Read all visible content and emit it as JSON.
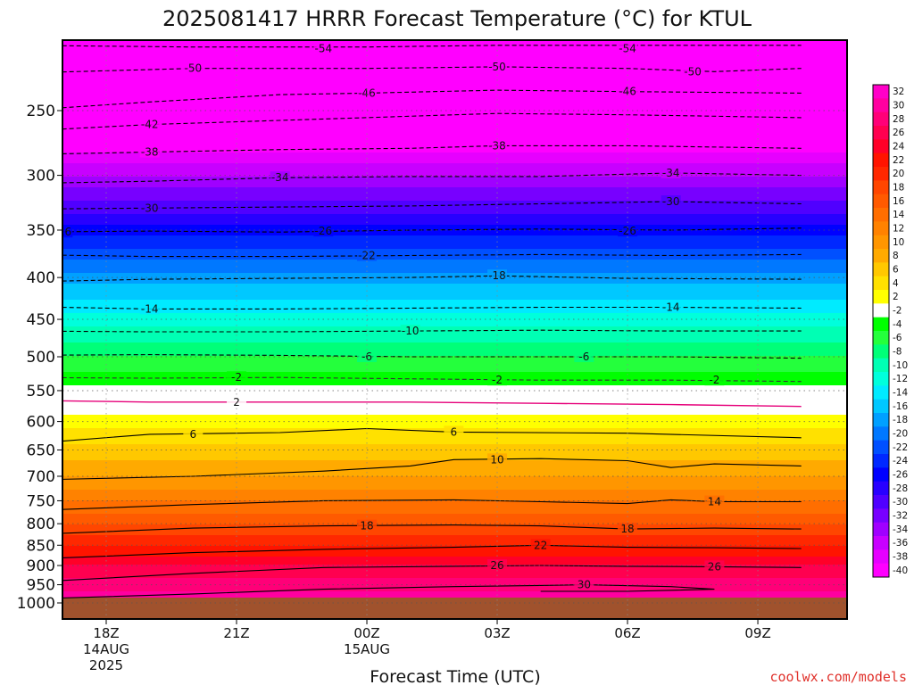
{
  "title": "2025081417 HRRR Forecast Temperature (°C) for KTUL",
  "credit": "coolwx.com/models",
  "credit_color": "#e0302a",
  "chart_data": {
    "type": "heatmap",
    "title": "2025081417 HRRR Forecast Temperature (°C) for KTUL",
    "xlabel": "Forecast Time (UTC)",
    "ylabel": "",
    "x_range_hours": [
      -1,
      17
    ],
    "y_range_hPa": [
      1000,
      200
    ],
    "y_scale": "log",
    "y_ticks": [
      {
        "p": 250,
        "label": "250"
      },
      {
        "p": 300,
        "label": "300"
      },
      {
        "p": 350,
        "label": "350"
      },
      {
        "p": 400,
        "label": "400"
      },
      {
        "p": 450,
        "label": "450"
      },
      {
        "p": 500,
        "label": "500"
      },
      {
        "p": 550,
        "label": "550"
      },
      {
        "p": 600,
        "label": "600"
      },
      {
        "p": 650,
        "label": "650"
      },
      {
        "p": 700,
        "label": "700"
      },
      {
        "p": 750,
        "label": "750"
      },
      {
        "p": 800,
        "label": "800"
      },
      {
        "p": 850,
        "label": "850"
      },
      {
        "p": 900,
        "label": "900"
      },
      {
        "p": 950,
        "label": "950"
      },
      {
        "p": 1000,
        "label": "1000"
      }
    ],
    "x_ticks": [
      {
        "h": 1,
        "lines": [
          "18Z",
          "14AUG",
          "2025"
        ]
      },
      {
        "h": 4,
        "lines": [
          "21Z"
        ]
      },
      {
        "h": 7,
        "lines": [
          "00Z",
          "15AUG"
        ]
      },
      {
        "h": 10,
        "lines": [
          "03Z"
        ]
      },
      {
        "h": 13,
        "lines": [
          "06Z"
        ]
      },
      {
        "h": 16,
        "lines": [
          "09Z"
        ]
      }
    ],
    "grid": true,
    "surface_pressure_hPa": 985,
    "surface_color": "#a0522d",
    "colorbar": {
      "placement": "right",
      "labels": [
        32,
        30,
        28,
        26,
        24,
        22,
        20,
        18,
        16,
        14,
        12,
        10,
        8,
        6,
        4,
        2,
        -2,
        -4,
        -6,
        -8,
        -10,
        -12,
        -14,
        -16,
        -18,
        -20,
        -22,
        -24,
        -26,
        -28,
        -30,
        -32,
        -34,
        -36,
        -38,
        -40
      ],
      "colors": [
        [
          "#ff00c8",
          "#ff00a0",
          "#ff0078",
          "#ff0050",
          "#ff0028",
          "#ff1400",
          "#ff2800",
          "#ff4600",
          "#ff5a00",
          "#ff6e00",
          "#ff8200",
          "#ff9600",
          "#ffaa00",
          "#ffc800",
          "#ffe100",
          "#ffff00",
          "#ffffff",
          "#00ff00",
          "#24ff3c",
          "#00ff78",
          "#00ffb4",
          "#00ffdc",
          "#00ebff",
          "#00c8ff",
          "#00a0ff",
          "#0078ff",
          "#0050ff",
          "#0028ff",
          "#0000ff",
          "#2800ff",
          "#5000ff",
          "#7800ff",
          "#a000ff",
          "#c800ff",
          "#e600ff",
          "#ff00ff"
        ]
      ]
    },
    "temperature_profile": [
      {
        "p": 200,
        "t": -56
      },
      {
        "p": 250,
        "t": -45
      },
      {
        "p": 300,
        "t": -34
      },
      {
        "p": 350,
        "t": -25
      },
      {
        "p": 400,
        "t": -17
      },
      {
        "p": 450,
        "t": -11
      },
      {
        "p": 500,
        "t": -6
      },
      {
        "p": 550,
        "t": -1
      },
      {
        "p": 600,
        "t": 3
      },
      {
        "p": 650,
        "t": 7
      },
      {
        "p": 700,
        "t": 10
      },
      {
        "p": 750,
        "t": 14
      },
      {
        "p": 800,
        "t": 18
      },
      {
        "p": 850,
        "t": 22
      },
      {
        "p": 900,
        "t": 26
      },
      {
        "p": 950,
        "t": 29
      },
      {
        "p": 1000,
        "t": 32
      }
    ],
    "contours": [
      {
        "level": -54,
        "labels": [
          {
            "h": 6,
            "p": 210
          },
          {
            "h": 13,
            "p": 210
          }
        ],
        "points": [
          [
            -1,
            208
          ],
          [
            3,
            209
          ],
          [
            7,
            209
          ],
          [
            10,
            208
          ],
          [
            13,
            208
          ],
          [
            17,
            208
          ]
        ]
      },
      {
        "level": -50,
        "labels": [
          {
            "h": 3,
            "p": 222
          },
          {
            "h": 10,
            "p": 221
          },
          {
            "h": 14.5,
            "p": 224
          }
        ],
        "points": [
          [
            -1,
            225
          ],
          [
            3,
            222
          ],
          [
            7,
            222
          ],
          [
            10,
            221
          ],
          [
            13,
            222
          ],
          [
            15,
            224
          ],
          [
            17,
            222
          ]
        ]
      },
      {
        "level": -46,
        "labels": [
          {
            "h": 7,
            "p": 238
          },
          {
            "h": 13,
            "p": 237
          }
        ],
        "points": [
          [
            -1,
            250
          ],
          [
            2,
            244
          ],
          [
            5,
            239
          ],
          [
            7,
            238
          ],
          [
            10,
            236
          ],
          [
            13,
            237
          ],
          [
            17,
            238
          ]
        ]
      },
      {
        "level": -42,
        "labels": [
          {
            "h": 2,
            "p": 260
          }
        ],
        "points": [
          [
            -1,
            265
          ],
          [
            2,
            260
          ],
          [
            5,
            257
          ],
          [
            8,
            254
          ],
          [
            10,
            252
          ],
          [
            13,
            253
          ],
          [
            17,
            255
          ]
        ]
      },
      {
        "level": -38,
        "labels": [
          {
            "h": 2,
            "p": 281
          },
          {
            "h": 10,
            "p": 276
          }
        ],
        "points": [
          [
            -1,
            283
          ],
          [
            2,
            281
          ],
          [
            5,
            279
          ],
          [
            8,
            278
          ],
          [
            10,
            276
          ],
          [
            13,
            276
          ],
          [
            17,
            278
          ]
        ]
      },
      {
        "level": -34,
        "labels": [
          {
            "h": 5,
            "p": 302
          },
          {
            "h": 14,
            "p": 298
          }
        ],
        "points": [
          [
            -1,
            307
          ],
          [
            2,
            305
          ],
          [
            5,
            302
          ],
          [
            8,
            301
          ],
          [
            11,
            301
          ],
          [
            14,
            298
          ],
          [
            17,
            300
          ]
        ]
      },
      {
        "level": -30,
        "labels": [
          {
            "h": 2,
            "p": 329
          },
          {
            "h": 14,
            "p": 323
          }
        ],
        "points": [
          [
            -1,
            330
          ],
          [
            2,
            329
          ],
          [
            5,
            328
          ],
          [
            8,
            327
          ],
          [
            11,
            325
          ],
          [
            14,
            323
          ],
          [
            17,
            325
          ]
        ]
      },
      {
        "level": -26,
        "labels": [
          {
            "h": 0,
            "p": 352
          },
          {
            "h": 6,
            "p": 351
          },
          {
            "h": 13,
            "p": 351
          }
        ],
        "points": [
          [
            -1,
            352
          ],
          [
            2,
            351
          ],
          [
            5,
            352
          ],
          [
            8,
            350
          ],
          [
            11,
            349
          ],
          [
            14,
            350
          ],
          [
            17,
            348
          ]
        ]
      },
      {
        "level": -22,
        "labels": [
          {
            "h": 7,
            "p": 376
          }
        ],
        "points": [
          [
            -1,
            375
          ],
          [
            2,
            377
          ],
          [
            5,
            377
          ],
          [
            8,
            376
          ],
          [
            11,
            375
          ],
          [
            14,
            376
          ],
          [
            17,
            375
          ]
        ]
      },
      {
        "level": -18,
        "labels": [
          {
            "h": 10,
            "p": 398
          }
        ],
        "points": [
          [
            -1,
            405
          ],
          [
            2,
            402
          ],
          [
            5,
            401
          ],
          [
            8,
            400
          ],
          [
            10,
            398
          ],
          [
            13,
            401
          ],
          [
            17,
            402
          ]
        ]
      },
      {
        "level": -14,
        "labels": [
          {
            "h": 2,
            "p": 437
          },
          {
            "h": 14,
            "p": 435
          }
        ],
        "points": [
          [
            -1,
            434
          ],
          [
            2,
            437
          ],
          [
            5,
            437
          ],
          [
            8,
            436
          ],
          [
            11,
            435
          ],
          [
            14,
            435
          ],
          [
            17,
            436
          ]
        ]
      },
      {
        "level": -10,
        "labels": [
          {
            "h": 8,
            "p": 465
          }
        ],
        "points": [
          [
            -1,
            465
          ],
          [
            2,
            466
          ],
          [
            5,
            466
          ],
          [
            8,
            465
          ],
          [
            11,
            464
          ],
          [
            14,
            465
          ],
          [
            17,
            465
          ]
        ]
      },
      {
        "level": -6,
        "labels": [
          {
            "h": 7,
            "p": 500
          },
          {
            "h": 12,
            "p": 500
          }
        ],
        "points": [
          [
            -1,
            498
          ],
          [
            2,
            497
          ],
          [
            5,
            498
          ],
          [
            8,
            500
          ],
          [
            11,
            500
          ],
          [
            14,
            500
          ],
          [
            17,
            502
          ]
        ]
      },
      {
        "level": -2,
        "labels": [
          {
            "h": 4,
            "p": 530
          },
          {
            "h": 10,
            "p": 534
          },
          {
            "h": 15,
            "p": 534
          }
        ],
        "points": [
          [
            -1,
            530
          ],
          [
            2,
            531
          ],
          [
            5,
            530
          ],
          [
            8,
            532
          ],
          [
            11,
            534
          ],
          [
            14,
            534
          ],
          [
            17,
            536
          ]
        ]
      },
      {
        "level": 2,
        "labels": [
          {
            "h": 4,
            "p": 568
          }
        ],
        "points": [
          [
            -1,
            565
          ],
          [
            2,
            568
          ],
          [
            5,
            568
          ],
          [
            8,
            568
          ],
          [
            11,
            570
          ],
          [
            14,
            572
          ],
          [
            17,
            575
          ]
        ]
      },
      {
        "level": 6,
        "labels": [
          {
            "h": 3,
            "p": 622
          },
          {
            "h": 9,
            "p": 618
          }
        ],
        "points": [
          [
            -1,
            640
          ],
          [
            2,
            622
          ],
          [
            5,
            619
          ],
          [
            7,
            612
          ],
          [
            9,
            618
          ],
          [
            13,
            620
          ],
          [
            17,
            628
          ]
        ]
      },
      {
        "level": 10,
        "labels": [
          {
            "h": 10,
            "p": 668
          }
        ],
        "points": [
          [
            -1,
            708
          ],
          [
            3,
            700
          ],
          [
            6,
            690
          ],
          [
            8,
            680
          ],
          [
            9,
            668
          ],
          [
            11,
            666
          ],
          [
            13,
            670
          ],
          [
            14,
            683
          ],
          [
            15,
            676
          ],
          [
            17,
            680
          ]
        ]
      },
      {
        "level": 14,
        "labels": [
          {
            "h": 15,
            "p": 752
          }
        ],
        "points": [
          [
            -1,
            772
          ],
          [
            3,
            758
          ],
          [
            6,
            750
          ],
          [
            9,
            748
          ],
          [
            11,
            752
          ],
          [
            13,
            756
          ],
          [
            14,
            748
          ],
          [
            15,
            752
          ],
          [
            17,
            752
          ]
        ]
      },
      {
        "level": 18,
        "labels": [
          {
            "h": 7,
            "p": 805
          },
          {
            "h": 13,
            "p": 812
          }
        ],
        "points": [
          [
            -1,
            826
          ],
          [
            3,
            810
          ],
          [
            6,
            805
          ],
          [
            9,
            803
          ],
          [
            11,
            805
          ],
          [
            13,
            812
          ],
          [
            15,
            810
          ],
          [
            17,
            812
          ]
        ]
      },
      {
        "level": 22,
        "labels": [
          {
            "h": 11,
            "p": 850
          }
        ],
        "points": [
          [
            -1,
            885
          ],
          [
            3,
            868
          ],
          [
            6,
            860
          ],
          [
            9,
            855
          ],
          [
            11,
            850
          ],
          [
            13,
            855
          ],
          [
            15,
            856
          ],
          [
            17,
            858
          ]
        ]
      },
      {
        "level": 26,
        "labels": [
          {
            "h": 10,
            "p": 900
          },
          {
            "h": 15,
            "p": 903
          }
        ],
        "points": [
          [
            -1,
            945
          ],
          [
            3,
            920
          ],
          [
            6,
            905
          ],
          [
            9,
            902
          ],
          [
            11,
            900
          ],
          [
            13,
            902
          ],
          [
            15,
            903
          ],
          [
            17,
            905
          ]
        ]
      },
      {
        "level": 30,
        "labels": [
          {
            "h": 12,
            "p": 950
          }
        ],
        "points": [
          [
            -1,
            990
          ],
          [
            3,
            975
          ],
          [
            6,
            962
          ],
          [
            9,
            955
          ],
          [
            11,
            952
          ],
          [
            12,
            950
          ],
          [
            14,
            955
          ],
          [
            15,
            962
          ],
          [
            13,
            968
          ],
          [
            11,
            968
          ]
        ]
      }
    ]
  }
}
